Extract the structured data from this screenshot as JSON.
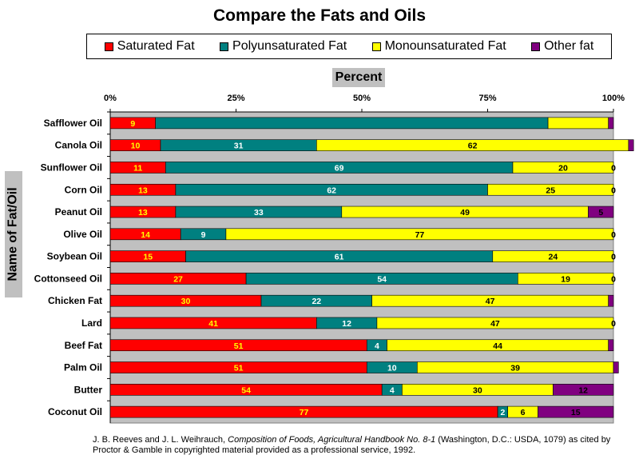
{
  "chart_data": {
    "type": "bar",
    "orientation": "horizontal",
    "stacked": true,
    "title": "Compare the Fats and Oils",
    "xlabel": "Percent",
    "ylabel": "Name of Fat/Oil",
    "xlim": [
      0,
      100
    ],
    "x_ticks": [
      "0%",
      "25%",
      "50%",
      "75%",
      "100%"
    ],
    "x_axis_position": "top",
    "grid": false,
    "legend_position": "top",
    "categories": [
      "Safflower Oil",
      "Canola Oil",
      "Sunflower Oil",
      "Corn Oil",
      "Peanut Oil",
      "Olive Oil",
      "Soybean Oil",
      "Cottonseed Oil",
      "Chicken Fat",
      "Lard",
      "Beef Fat",
      "Palm Oil",
      "Butter",
      "Coconut Oil"
    ],
    "series": [
      {
        "name": "Saturated Fat",
        "color": "#ff0000",
        "label_color": "#ffff00",
        "values": [
          9,
          10,
          11,
          13,
          13,
          14,
          15,
          27,
          30,
          41,
          51,
          51,
          54,
          77
        ]
      },
      {
        "name": "Polyunsaturated Fat",
        "color": "#008080",
        "label_color": "#ffffff",
        "values": [
          78,
          31,
          69,
          62,
          33,
          9,
          61,
          54,
          22,
          12,
          4,
          10,
          4,
          2
        ]
      },
      {
        "name": "Monounsaturated Fat",
        "color": "#ffff00",
        "label_color": "#000000",
        "values": [
          12,
          62,
          20,
          25,
          49,
          77,
          24,
          19,
          47,
          47,
          44,
          39,
          30,
          6
        ]
      },
      {
        "name": "Other fat",
        "color": "#800080",
        "label_color": "#000000",
        "values": [
          1,
          1,
          0,
          0,
          5,
          0,
          0,
          0,
          1,
          0,
          1,
          1,
          12,
          15
        ]
      }
    ],
    "hidden_value_labels": [
      [
        true,
        false,
        false,
        false
      ],
      [
        true,
        true,
        true,
        false
      ],
      [
        true,
        true,
        true,
        true
      ],
      [
        true,
        true,
        true,
        true
      ],
      [
        true,
        true,
        true,
        true
      ],
      [
        true,
        true,
        true,
        true
      ],
      [
        true,
        true,
        true,
        true
      ],
      [
        true,
        true,
        true,
        true
      ],
      [
        true,
        true,
        true,
        false
      ],
      [
        true,
        true,
        true,
        true
      ],
      [
        true,
        true,
        true,
        false
      ],
      [
        true,
        true,
        true,
        false
      ],
      [
        true,
        true,
        true,
        true
      ],
      [
        true,
        true,
        true,
        true
      ]
    ]
  },
  "legend": {
    "items": [
      {
        "label": "Saturated Fat",
        "color": "#ff0000"
      },
      {
        "label": "Polyunsaturated Fat",
        "color": "#008080"
      },
      {
        "label": "Monounsaturated Fat",
        "color": "#ffff00"
      },
      {
        "label": "Other fat",
        "color": "#800080"
      }
    ]
  },
  "plot": {
    "background": "#c0c0c0"
  },
  "source": {
    "prefix": "J. B. Reeves and J. L. Weihrauch, ",
    "title": "Composition of Foods, Agricultural Handbook No. 8-1",
    "suffix": " (Washington, D.C.: USDA, 1079) as cited by Proctor & Gamble  in copyrighted material provided as a professional service, 1992."
  }
}
